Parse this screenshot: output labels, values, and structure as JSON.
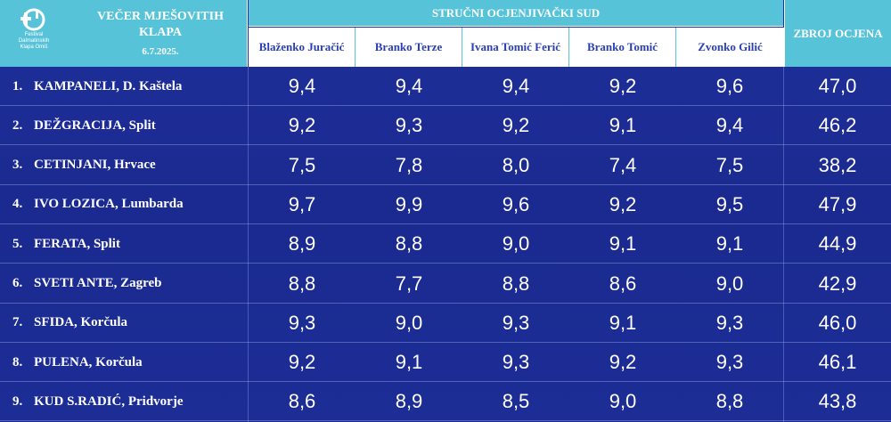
{
  "header": {
    "logo_lines": [
      "Festival",
      "Dalmatinskih",
      "Klapa Omiš"
    ],
    "title": "VEČER MJEŠOVITIH KLAPA",
    "date": "6.7.2025.",
    "jury_title": "STRUČNI OCJENJIVAČKI SUD",
    "total_label": "ZBROJ OCJENA",
    "judges": [
      "Blaženko Juračić",
      "Branko Terze",
      "Ivana Tomić Ferić",
      "Branko Tomić",
      "Zvonko Gilić"
    ]
  },
  "rows": [
    {
      "rank": "1.",
      "name": "KAMPANELI, D. Kaštela",
      "scores": [
        "9,4",
        "9,4",
        "9,4",
        "9,2",
        "9,6"
      ],
      "total": "47,0"
    },
    {
      "rank": "2.",
      "name": "DEŽGRACIJA, Split",
      "scores": [
        "9,2",
        "9,3",
        "9,2",
        "9,1",
        "9,4"
      ],
      "total": "46,2"
    },
    {
      "rank": "3.",
      "name": "CETINJANI, Hrvace",
      "scores": [
        "7,5",
        "7,8",
        "8,0",
        "7,4",
        "7,5"
      ],
      "total": "38,2"
    },
    {
      "rank": "4.",
      "name": "IVO LOZICA, Lumbarda",
      "scores": [
        "9,7",
        "9,9",
        "9,6",
        "9,2",
        "9,5"
      ],
      "total": "47,9"
    },
    {
      "rank": "5.",
      "name": "FERATA, Split",
      "scores": [
        "8,9",
        "8,8",
        "9,0",
        "9,1",
        "9,1"
      ],
      "total": "44,9"
    },
    {
      "rank": "6.",
      "name": "SVETI ANTE, Zagreb",
      "scores": [
        "8,8",
        "7,7",
        "8,8",
        "8,6",
        "9,0"
      ],
      "total": "42,9"
    },
    {
      "rank": "7.",
      "name": "SFIDA, Korčula",
      "scores": [
        "9,3",
        "9,0",
        "9,3",
        "9,1",
        "9,3"
      ],
      "total": "46,0"
    },
    {
      "rank": "8.",
      "name": "PULENA, Korčula",
      "scores": [
        "9,2",
        "9,1",
        "9,3",
        "9,2",
        "9,3"
      ],
      "total": "46,1"
    },
    {
      "rank": "9.",
      "name": "KUD S.RADIĆ, Pridvorje",
      "scores": [
        "8,6",
        "8,9",
        "8,5",
        "9,0",
        "8,8"
      ],
      "total": "43,8"
    }
  ]
}
